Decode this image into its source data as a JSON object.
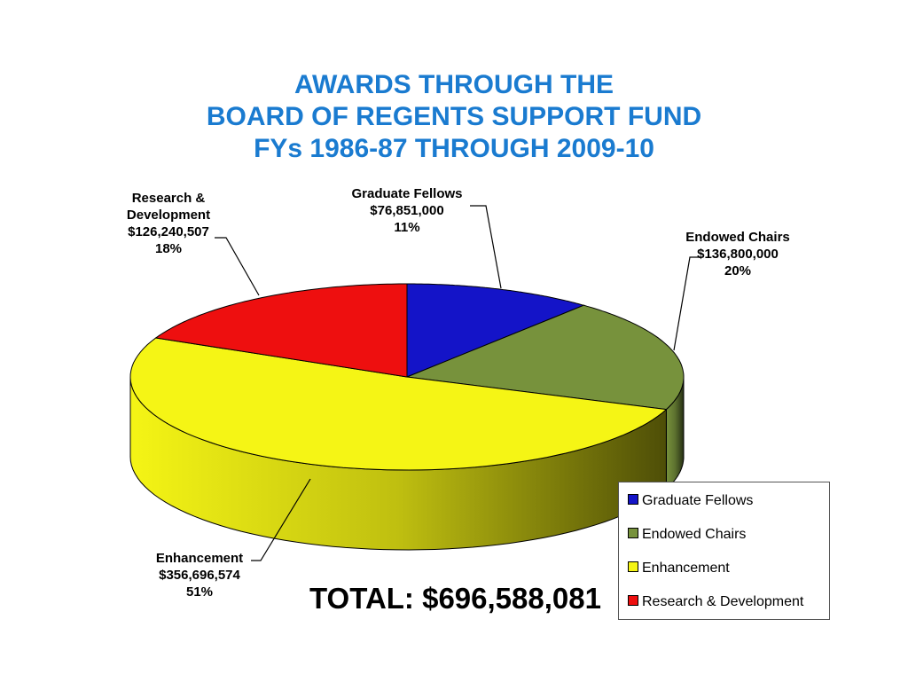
{
  "chart_data": {
    "type": "pie",
    "title": [
      "AWARDS THROUGH THE",
      "BOARD OF REGENTS SUPPORT FUND",
      "FYs 1986-87 THROUGH 2009-10"
    ],
    "slices": [
      {
        "label": "Graduate Fellows",
        "value": 76851000,
        "value_label": "$76,851,000",
        "percent_label": "11%",
        "color": "#1414c8"
      },
      {
        "label": "Endowed Chairs",
        "value": 136800000,
        "value_label": "$136,800,000",
        "percent_label": "20%",
        "color": "#77923c"
      },
      {
        "label": "Enhancement",
        "value": 356696574,
        "value_label": "$356,696,574",
        "percent_label": "51%",
        "color": "#f5f515"
      },
      {
        "label": "Research & Development",
        "value": 126240507,
        "value_label": "$126,240,507",
        "percent_label": "18%",
        "color": "#ee0f0f"
      }
    ],
    "slice_labels": {
      "graduate_fellows": [
        "Graduate Fellows",
        "$76,851,000",
        "11%"
      ],
      "endowed_chairs": [
        "Endowed Chairs",
        "$136,800,000",
        "20%"
      ],
      "enhancement": [
        "Enhancement",
        "$356,696,574",
        "51%"
      ],
      "research": [
        "Research &",
        "Development",
        "$126,240,507",
        "18%"
      ]
    },
    "legend": {
      "placement": "bottom-right",
      "entries": [
        "Graduate Fellows",
        "Endowed Chairs",
        "Enhancement",
        "Research & Development"
      ]
    },
    "total_label": "TOTAL:  $696,588,081"
  }
}
